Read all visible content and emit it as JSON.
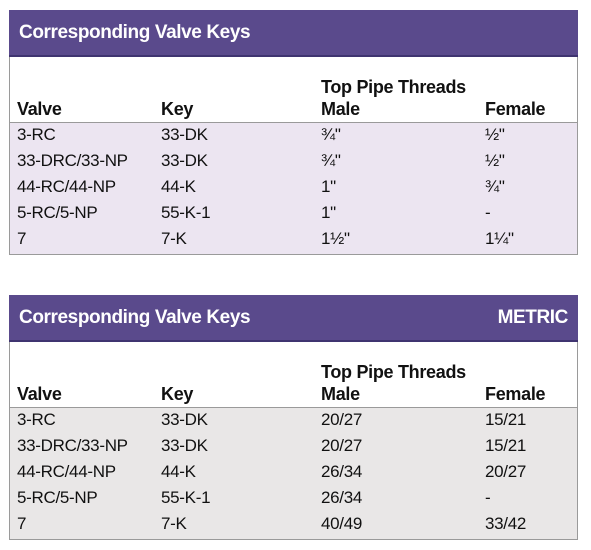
{
  "tables": [
    {
      "title": "Corresponding Valve Keys",
      "group_header": "Top Pipe Threads",
      "columns": [
        "Valve",
        "Key",
        "Male",
        "Female"
      ],
      "rows": [
        [
          "3-RC",
          "33-DK",
          "¾\"",
          "½\""
        ],
        [
          "33-DRC/33-NP",
          "33-DK",
          "¾\"",
          "½\""
        ],
        [
          "44-RC/44-NP",
          "44-K",
          "1\"",
          "¾\""
        ],
        [
          "5-RC/5-NP",
          "55-K-1",
          "1\"",
          "-"
        ],
        [
          "7",
          "7-K",
          "1½\"",
          "1¼\""
        ]
      ]
    },
    {
      "title": "Corresponding Valve Keys",
      "badge": "METRIC",
      "group_header": "Top Pipe Threads",
      "columns": [
        "Valve",
        "Key",
        "Male",
        "Female"
      ],
      "rows": [
        [
          "3-RC",
          "33-DK",
          "20/27",
          "15/21"
        ],
        [
          "33-DRC/33-NP",
          "33-DK",
          "20/27",
          "15/21"
        ],
        [
          "44-RC/44-NP",
          "44-K",
          "26/34",
          "20/27"
        ],
        [
          "5-RC/5-NP",
          "55-K-1",
          "26/34",
          "-"
        ],
        [
          "7",
          "7-K",
          "40/49",
          "33/42"
        ]
      ]
    }
  ]
}
